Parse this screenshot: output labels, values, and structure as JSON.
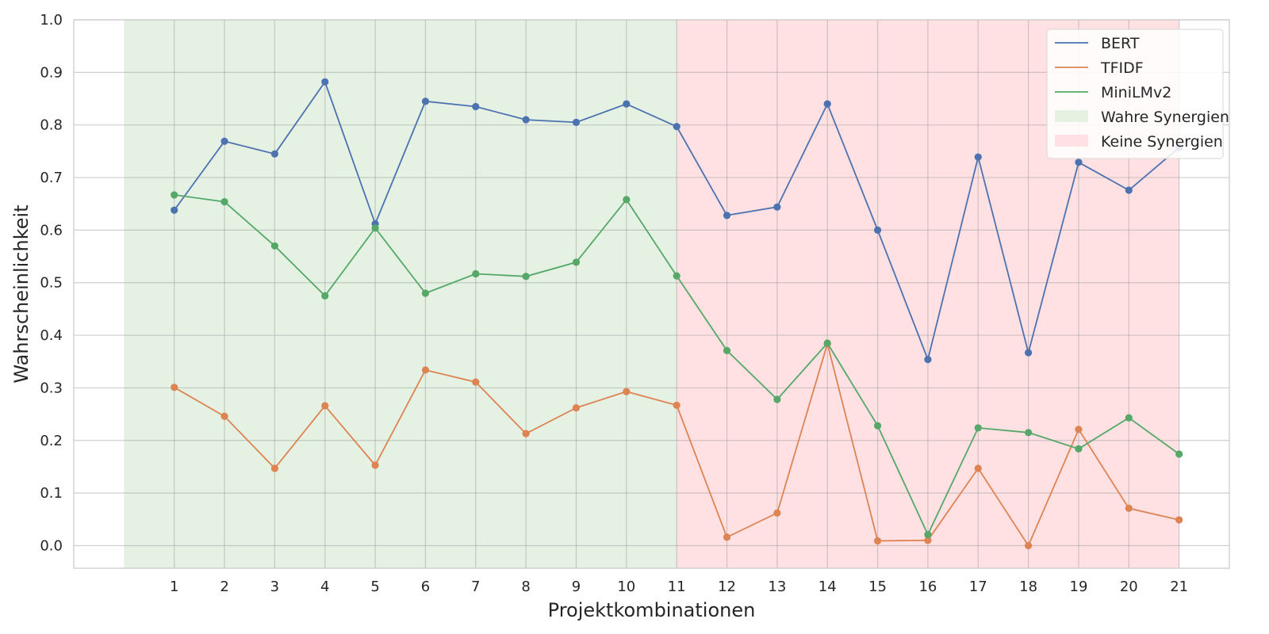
{
  "chart_data": {
    "type": "line",
    "title": "",
    "xlabel": "Projektkombinationen",
    "ylabel": "Wahrscheinlichkeit",
    "x": [
      1,
      2,
      3,
      4,
      5,
      6,
      7,
      8,
      9,
      10,
      11,
      12,
      13,
      14,
      15,
      16,
      17,
      18,
      19,
      20,
      21
    ],
    "xlim": [
      -1,
      22
    ],
    "ylim": [
      -0.043,
      1.0
    ],
    "yticks": [
      0.0,
      0.1,
      0.2,
      0.3,
      0.4,
      0.5,
      0.6,
      0.7,
      0.8,
      0.9,
      1.0
    ],
    "grid": true,
    "legend_position": "top-right",
    "series": [
      {
        "name": "BERT",
        "color": "#4c72b0",
        "values": [
          0.638,
          0.769,
          0.745,
          0.882,
          0.612,
          0.845,
          0.835,
          0.81,
          0.805,
          0.84,
          0.797,
          0.628,
          0.644,
          0.84,
          0.6,
          0.354,
          0.739,
          0.367,
          0.729,
          0.676,
          0.757
        ]
      },
      {
        "name": "TFIDF",
        "color": "#dd8452",
        "values": [
          0.301,
          0.246,
          0.147,
          0.266,
          0.153,
          0.334,
          0.311,
          0.213,
          0.262,
          0.293,
          0.267,
          0.016,
          0.062,
          0.384,
          0.009,
          0.01,
          0.147,
          0.0,
          0.221,
          0.071,
          0.049
        ]
      },
      {
        "name": "MiniLMv2",
        "color": "#55a868",
        "values": [
          0.667,
          0.654,
          0.57,
          0.475,
          0.604,
          0.48,
          0.517,
          0.512,
          0.539,
          0.658,
          0.513,
          0.371,
          0.278,
          0.385,
          0.228,
          0.021,
          0.224,
          0.215,
          0.184,
          0.243,
          0.174
        ]
      }
    ],
    "regions": [
      {
        "name": "Wahre Synergien",
        "x_start": 0,
        "x_end": 11,
        "color": "#e4f1e3"
      },
      {
        "name": "Keine Synergien",
        "x_start": 11,
        "x_end": 21,
        "color": "#ffe0e3"
      }
    ]
  }
}
